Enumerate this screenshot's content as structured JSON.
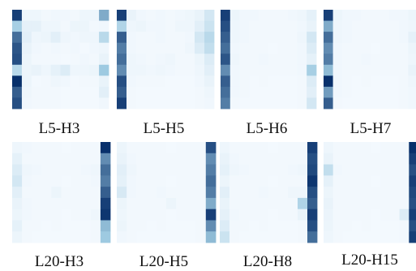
{
  "colormap": {
    "low": "#f7fbff",
    "mid": "#9ecae1",
    "high": "#08306b"
  },
  "chart_data": {
    "type": "heatmap",
    "value_range": [
      0,
      1
    ],
    "panels": [
      {
        "label": "L5-H3",
        "values": [
          [
            0.95,
            0.05,
            0.05,
            0.03,
            0.04,
            0.04,
            0.03,
            0.05,
            0.05,
            0.6
          ],
          [
            0.45,
            0.1,
            0.1,
            0.05,
            0.05,
            0.03,
            0.06,
            0.06,
            0.03,
            0.04
          ],
          [
            0.8,
            0.12,
            0.05,
            0.06,
            0.12,
            0.05,
            0.04,
            0.05,
            0.05,
            0.35
          ],
          [
            0.88,
            0.08,
            0.04,
            0.03,
            0.04,
            0.03,
            0.04,
            0.02,
            0.04,
            0.05
          ],
          [
            0.9,
            0.06,
            0.03,
            0.03,
            0.03,
            0.02,
            0.03,
            0.04,
            0.03,
            0.08
          ],
          [
            0.35,
            0.06,
            0.08,
            0.05,
            0.1,
            0.15,
            0.05,
            0.05,
            0.06,
            0.5
          ],
          [
            1.0,
            0.06,
            0.02,
            0.03,
            0.05,
            0.04,
            0.02,
            0.03,
            0.03,
            0.08
          ],
          [
            0.85,
            0.05,
            0.03,
            0.03,
            0.03,
            0.02,
            0.02,
            0.02,
            0.02,
            0.12
          ],
          [
            0.9,
            0.04,
            0.03,
            0.03,
            0.03,
            0.02,
            0.02,
            0.02,
            0.02,
            0.04
          ]
        ]
      },
      {
        "label": "L5-H5",
        "values": [
          [
            0.95,
            0.08,
            0.04,
            0.03,
            0.04,
            0.03,
            0.04,
            0.05,
            0.08,
            0.2
          ],
          [
            0.4,
            0.05,
            0.06,
            0.04,
            0.04,
            0.03,
            0.05,
            0.05,
            0.12,
            0.25
          ],
          [
            0.85,
            0.04,
            0.03,
            0.03,
            0.04,
            0.03,
            0.03,
            0.04,
            0.2,
            0.35
          ],
          [
            0.75,
            0.04,
            0.03,
            0.03,
            0.03,
            0.03,
            0.03,
            0.05,
            0.15,
            0.3
          ],
          [
            0.8,
            0.05,
            0.04,
            0.03,
            0.04,
            0.05,
            0.03,
            0.03,
            0.06,
            0.15
          ],
          [
            0.7,
            0.05,
            0.05,
            0.04,
            0.05,
            0.04,
            0.03,
            0.03,
            0.05,
            0.12
          ],
          [
            0.9,
            0.04,
            0.03,
            0.03,
            0.03,
            0.02,
            0.02,
            0.02,
            0.04,
            0.08
          ],
          [
            0.85,
            0.03,
            0.02,
            0.02,
            0.02,
            0.02,
            0.02,
            0.02,
            0.03,
            0.05
          ],
          [
            0.95,
            0.03,
            0.02,
            0.02,
            0.02,
            0.02,
            0.02,
            0.02,
            0.03,
            0.04
          ]
        ]
      },
      {
        "label": "L5-H6",
        "values": [
          [
            0.95,
            0.06,
            0.04,
            0.04,
            0.03,
            0.03,
            0.03,
            0.04,
            0.05,
            0.1
          ],
          [
            0.9,
            0.05,
            0.04,
            0.03,
            0.03,
            0.03,
            0.03,
            0.03,
            0.04,
            0.08
          ],
          [
            0.85,
            0.05,
            0.04,
            0.03,
            0.03,
            0.03,
            0.03,
            0.03,
            0.05,
            0.2
          ],
          [
            0.8,
            0.04,
            0.03,
            0.03,
            0.03,
            0.02,
            0.03,
            0.03,
            0.04,
            0.15
          ],
          [
            0.88,
            0.05,
            0.03,
            0.03,
            0.04,
            0.03,
            0.03,
            0.03,
            0.04,
            0.1
          ],
          [
            0.7,
            0.04,
            0.03,
            0.03,
            0.03,
            0.03,
            0.03,
            0.03,
            0.04,
            0.45
          ],
          [
            0.85,
            0.04,
            0.03,
            0.02,
            0.03,
            0.02,
            0.02,
            0.02,
            0.03,
            0.15
          ],
          [
            0.8,
            0.04,
            0.03,
            0.02,
            0.02,
            0.02,
            0.02,
            0.02,
            0.03,
            0.12
          ],
          [
            0.75,
            0.03,
            0.02,
            0.02,
            0.02,
            0.02,
            0.02,
            0.02,
            0.03,
            0.2
          ]
        ]
      },
      {
        "label": "L5-H7",
        "values": [
          [
            0.95,
            0.06,
            0.04,
            0.04,
            0.03,
            0.03,
            0.03,
            0.04,
            0.04,
            0.06
          ],
          [
            0.6,
            0.05,
            0.04,
            0.03,
            0.03,
            0.03,
            0.03,
            0.03,
            0.04,
            0.05
          ],
          [
            0.8,
            0.05,
            0.04,
            0.03,
            0.03,
            0.03,
            0.03,
            0.03,
            0.04,
            0.1
          ],
          [
            0.7,
            0.04,
            0.03,
            0.03,
            0.03,
            0.02,
            0.03,
            0.03,
            0.03,
            0.06
          ],
          [
            0.75,
            0.04,
            0.03,
            0.03,
            0.04,
            0.03,
            0.03,
            0.03,
            0.03,
            0.05
          ],
          [
            0.55,
            0.04,
            0.03,
            0.03,
            0.03,
            0.03,
            0.03,
            0.03,
            0.03,
            0.08
          ],
          [
            1.0,
            0.04,
            0.03,
            0.02,
            0.03,
            0.02,
            0.02,
            0.02,
            0.03,
            0.05
          ],
          [
            0.65,
            0.04,
            0.03,
            0.02,
            0.02,
            0.02,
            0.02,
            0.02,
            0.03,
            0.04
          ],
          [
            0.85,
            0.03,
            0.02,
            0.02,
            0.02,
            0.02,
            0.02,
            0.02,
            0.03,
            0.04
          ]
        ]
      },
      {
        "label": "L20-H3",
        "values": [
          [
            0.05,
            0.04,
            0.03,
            0.03,
            0.03,
            0.02,
            0.03,
            0.03,
            0.03,
            1.0
          ],
          [
            0.1,
            0.03,
            0.03,
            0.03,
            0.03,
            0.03,
            0.03,
            0.03,
            0.03,
            0.7
          ],
          [
            0.15,
            0.05,
            0.04,
            0.03,
            0.03,
            0.03,
            0.03,
            0.04,
            0.05,
            0.8
          ],
          [
            0.2,
            0.04,
            0.03,
            0.03,
            0.03,
            0.02,
            0.03,
            0.03,
            0.04,
            0.75
          ],
          [
            0.12,
            0.03,
            0.03,
            0.03,
            0.06,
            0.03,
            0.03,
            0.03,
            0.03,
            0.85
          ],
          [
            0.08,
            0.04,
            0.03,
            0.03,
            0.03,
            0.03,
            0.03,
            0.03,
            0.03,
            0.95
          ],
          [
            0.06,
            0.04,
            0.03,
            0.03,
            0.03,
            0.02,
            0.03,
            0.03,
            0.05,
            0.98
          ],
          [
            0.1,
            0.03,
            0.03,
            0.02,
            0.03,
            0.02,
            0.02,
            0.02,
            0.03,
            0.55
          ],
          [
            0.06,
            0.03,
            0.02,
            0.02,
            0.02,
            0.02,
            0.02,
            0.02,
            0.03,
            0.5
          ]
        ]
      },
      {
        "label": "L20-H5",
        "values": [
          [
            0.06,
            0.03,
            0.03,
            0.03,
            0.03,
            0.02,
            0.03,
            0.03,
            0.03,
            0.9
          ],
          [
            0.08,
            0.04,
            0.03,
            0.03,
            0.03,
            0.03,
            0.03,
            0.03,
            0.03,
            0.7
          ],
          [
            0.12,
            0.05,
            0.03,
            0.03,
            0.03,
            0.03,
            0.03,
            0.03,
            0.03,
            0.75
          ],
          [
            0.1,
            0.04,
            0.03,
            0.03,
            0.03,
            0.02,
            0.03,
            0.03,
            0.03,
            0.8
          ],
          [
            0.18,
            0.04,
            0.03,
            0.03,
            0.04,
            0.03,
            0.03,
            0.03,
            0.03,
            0.75
          ],
          [
            0.06,
            0.03,
            0.03,
            0.03,
            0.03,
            0.06,
            0.03,
            0.03,
            0.03,
            0.6
          ],
          [
            0.05,
            0.03,
            0.03,
            0.03,
            0.03,
            0.02,
            0.03,
            0.03,
            0.03,
            0.95
          ],
          [
            0.06,
            0.03,
            0.03,
            0.02,
            0.03,
            0.02,
            0.02,
            0.02,
            0.03,
            0.7
          ],
          [
            0.04,
            0.03,
            0.02,
            0.02,
            0.02,
            0.02,
            0.02,
            0.02,
            0.03,
            0.55
          ]
        ]
      },
      {
        "label": "L20-H8",
        "values": [
          [
            0.05,
            0.03,
            0.03,
            0.03,
            0.03,
            0.02,
            0.03,
            0.03,
            0.03,
            0.95
          ],
          [
            0.08,
            0.04,
            0.03,
            0.03,
            0.03,
            0.03,
            0.03,
            0.03,
            0.03,
            0.9
          ],
          [
            0.1,
            0.05,
            0.04,
            0.03,
            0.03,
            0.03,
            0.03,
            0.04,
            0.05,
            0.92
          ],
          [
            0.06,
            0.03,
            0.03,
            0.03,
            0.03,
            0.02,
            0.03,
            0.03,
            0.03,
            0.98
          ],
          [
            0.12,
            0.03,
            0.03,
            0.03,
            0.04,
            0.03,
            0.03,
            0.05,
            0.05,
            0.9
          ],
          [
            0.08,
            0.03,
            0.03,
            0.03,
            0.03,
            0.03,
            0.03,
            0.03,
            0.4,
            0.85
          ],
          [
            0.1,
            0.04,
            0.03,
            0.03,
            0.03,
            0.02,
            0.03,
            0.03,
            0.08,
            0.95
          ],
          [
            0.15,
            0.03,
            0.03,
            0.02,
            0.03,
            0.02,
            0.02,
            0.02,
            0.03,
            0.9
          ],
          [
            0.25,
            0.03,
            0.02,
            0.02,
            0.02,
            0.02,
            0.02,
            0.02,
            0.03,
            0.8
          ]
        ]
      },
      {
        "label": "L20-H15",
        "values": [
          [
            0.05,
            0.03,
            0.03,
            0.03,
            0.03,
            0.02,
            0.03,
            0.03,
            0.03,
            1.0
          ],
          [
            0.08,
            0.03,
            0.03,
            0.03,
            0.03,
            0.03,
            0.03,
            0.03,
            0.03,
            0.95
          ],
          [
            0.3,
            0.04,
            0.03,
            0.03,
            0.03,
            0.03,
            0.03,
            0.03,
            0.03,
            0.9
          ],
          [
            0.1,
            0.03,
            0.03,
            0.03,
            0.03,
            0.02,
            0.03,
            0.03,
            0.03,
            0.95
          ],
          [
            0.06,
            0.03,
            0.03,
            0.03,
            0.03,
            0.03,
            0.03,
            0.03,
            0.03,
            0.92
          ],
          [
            0.08,
            0.03,
            0.03,
            0.03,
            0.03,
            0.03,
            0.03,
            0.03,
            0.03,
            0.9
          ],
          [
            0.07,
            0.03,
            0.03,
            0.03,
            0.03,
            0.02,
            0.03,
            0.03,
            0.15,
            0.95
          ],
          [
            0.06,
            0.03,
            0.03,
            0.02,
            0.03,
            0.02,
            0.02,
            0.02,
            0.03,
            0.9
          ],
          [
            0.05,
            0.03,
            0.02,
            0.02,
            0.02,
            0.02,
            0.02,
            0.02,
            0.03,
            0.95
          ]
        ]
      }
    ]
  }
}
